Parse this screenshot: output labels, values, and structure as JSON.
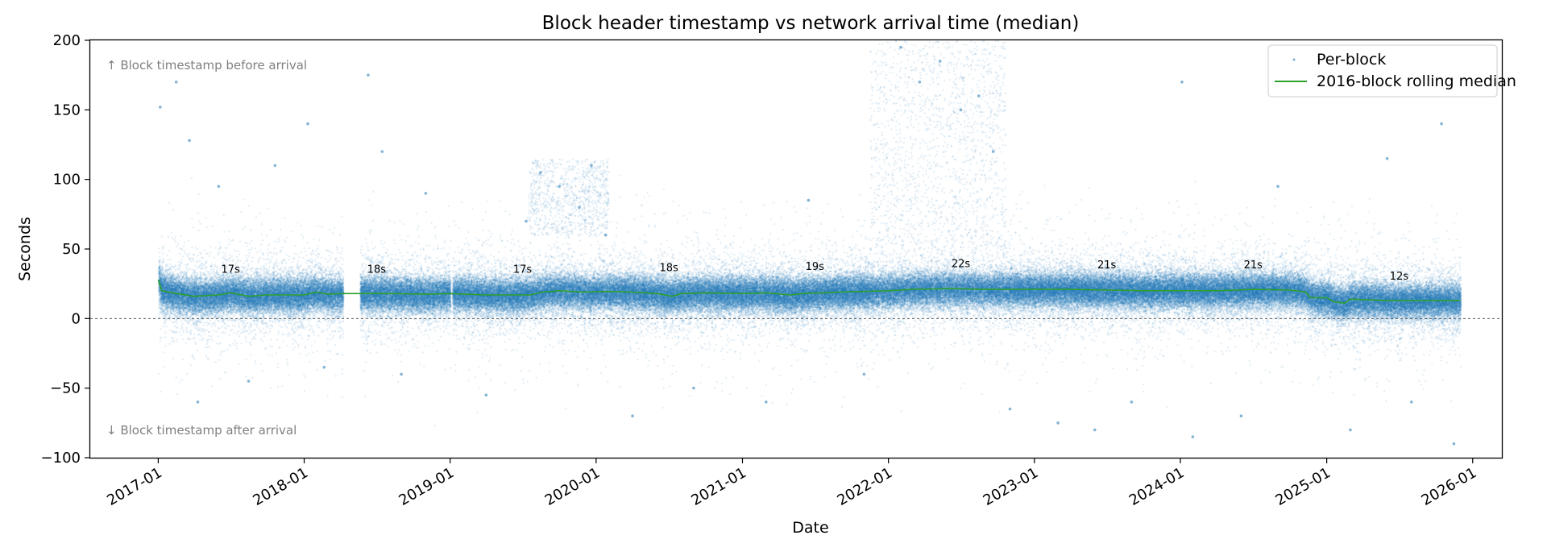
{
  "chart_data": {
    "type": "scatter",
    "title": "Block header timestamp vs network arrival time (median)",
    "xlabel": "Date",
    "ylabel": "Seconds",
    "ylim": [
      -100,
      200
    ],
    "xlim": [
      "2016-07-15",
      "2026-03-15"
    ],
    "yticks": [
      -100,
      -50,
      0,
      50,
      100,
      150,
      200
    ],
    "xticks": [
      "2017-01",
      "2018-01",
      "2019-01",
      "2020-01",
      "2021-01",
      "2022-01",
      "2023-01",
      "2024-01",
      "2025-01",
      "2026-01"
    ],
    "zero_reference_line": true,
    "grid": false,
    "legend_position": "top-right",
    "annotations": {
      "top": "↑ Block timestamp before arrival",
      "bottom": "↓ Block timestamp after arrival"
    },
    "series": [
      {
        "name": "Per-block",
        "kind": "scatter",
        "color": "#1f77b4",
        "date_range": [
          "2017-01-01",
          "2025-12-01"
        ],
        "data_gaps": [
          [
            "2018-04-08",
            "2018-05-20"
          ],
          [
            "2019-01-01",
            "2019-01-06"
          ]
        ],
        "dense_band": [
          0,
          35
        ],
        "points": [
          [
            "2017-01-06",
            152
          ],
          [
            "2017-02-15",
            170
          ],
          [
            "2017-03-20",
            128
          ],
          [
            "2017-04-10",
            -60
          ],
          [
            "2017-06-01",
            95
          ],
          [
            "2017-08-15",
            -45
          ],
          [
            "2017-10-20",
            110
          ],
          [
            "2018-01-10",
            140
          ],
          [
            "2018-02-20",
            -35
          ],
          [
            "2018-06-10",
            175
          ],
          [
            "2018-07-15",
            120
          ],
          [
            "2018-09-01",
            -40
          ],
          [
            "2018-11-01",
            90
          ],
          [
            "2019-04-01",
            -55
          ],
          [
            "2019-07-10",
            70
          ],
          [
            "2019-08-15",
            105
          ],
          [
            "2019-10-01",
            95
          ],
          [
            "2019-11-20",
            80
          ],
          [
            "2019-12-20",
            110
          ],
          [
            "2020-01-25",
            60
          ],
          [
            "2020-04-01",
            -70
          ],
          [
            "2020-09-01",
            -50
          ],
          [
            "2021-03-01",
            -60
          ],
          [
            "2021-06-15",
            85
          ],
          [
            "2021-11-01",
            -40
          ],
          [
            "2022-02-01",
            195
          ],
          [
            "2022-03-20",
            170
          ],
          [
            "2022-05-10",
            185
          ],
          [
            "2022-07-01",
            150
          ],
          [
            "2022-08-15",
            160
          ],
          [
            "2022-09-20",
            120
          ],
          [
            "2022-11-01",
            -65
          ],
          [
            "2023-03-01",
            -75
          ],
          [
            "2023-06-01",
            -80
          ],
          [
            "2023-09-01",
            -60
          ],
          [
            "2024-01-05",
            170
          ],
          [
            "2024-02-01",
            -85
          ],
          [
            "2024-06-01",
            -70
          ],
          [
            "2024-09-01",
            95
          ],
          [
            "2025-03-01",
            -80
          ],
          [
            "2025-06-01",
            115
          ],
          [
            "2025-08-01",
            -60
          ],
          [
            "2025-10-15",
            140
          ],
          [
            "2025-11-15",
            -90
          ]
        ]
      },
      {
        "name": "2016-block rolling median",
        "kind": "line",
        "color": "#2ca02c",
        "points": [
          [
            "2017-01-01",
            28
          ],
          [
            "2017-01-10",
            20
          ],
          [
            "2017-02-15",
            18
          ],
          [
            "2017-04-01",
            16
          ],
          [
            "2017-06-01",
            17
          ],
          [
            "2017-07-01",
            18.5
          ],
          [
            "2017-08-15",
            16
          ],
          [
            "2017-10-01",
            17
          ],
          [
            "2018-01-01",
            17
          ],
          [
            "2018-02-01",
            19
          ],
          [
            "2018-03-01",
            17.5
          ],
          [
            "2018-04-08",
            18
          ],
          [
            "2018-05-20",
            18
          ],
          [
            "2018-08-01",
            18
          ],
          [
            "2018-11-01",
            17.5
          ],
          [
            "2019-01-01",
            18
          ],
          [
            "2019-04-01",
            17
          ],
          [
            "2019-06-01",
            17
          ],
          [
            "2019-07-20",
            17
          ],
          [
            "2019-08-20",
            19
          ],
          [
            "2019-10-01",
            20
          ],
          [
            "2019-12-01",
            19
          ],
          [
            "2020-02-01",
            19.5
          ],
          [
            "2020-04-01",
            19
          ],
          [
            "2020-06-01",
            18
          ],
          [
            "2020-07-10",
            16
          ],
          [
            "2020-08-01",
            18
          ],
          [
            "2020-10-01",
            18.5
          ],
          [
            "2021-01-01",
            18
          ],
          [
            "2021-03-01",
            18.5
          ],
          [
            "2021-05-01",
            17
          ],
          [
            "2021-06-01",
            18
          ],
          [
            "2021-09-01",
            19
          ],
          [
            "2022-01-01",
            20
          ],
          [
            "2022-03-01",
            21
          ],
          [
            "2022-06-01",
            21.5
          ],
          [
            "2022-09-01",
            21
          ],
          [
            "2023-01-01",
            21
          ],
          [
            "2023-04-01",
            21
          ],
          [
            "2023-07-01",
            20.5
          ],
          [
            "2023-10-01",
            20
          ],
          [
            "2024-01-01",
            20
          ],
          [
            "2024-04-01",
            20
          ],
          [
            "2024-07-01",
            21
          ],
          [
            "2024-10-01",
            20.5
          ],
          [
            "2024-11-10",
            19
          ],
          [
            "2024-11-20",
            15
          ],
          [
            "2025-01-01",
            15
          ],
          [
            "2025-01-20",
            12
          ],
          [
            "2025-02-15",
            11
          ],
          [
            "2025-03-01",
            14
          ],
          [
            "2025-06-01",
            13
          ],
          [
            "2025-09-01",
            13
          ],
          [
            "2025-12-01",
            13
          ]
        ]
      }
    ],
    "median_labels": [
      {
        "text": "17s",
        "x": "2017-07-01",
        "y": 33
      },
      {
        "text": "18s",
        "x": "2018-07-01",
        "y": 33
      },
      {
        "text": "17s",
        "x": "2019-07-01",
        "y": 33
      },
      {
        "text": "18s",
        "x": "2020-07-01",
        "y": 34
      },
      {
        "text": "19s",
        "x": "2021-07-01",
        "y": 35
      },
      {
        "text": "22s",
        "x": "2022-07-01",
        "y": 37
      },
      {
        "text": "21s",
        "x": "2023-07-01",
        "y": 36
      },
      {
        "text": "21s",
        "x": "2024-07-01",
        "y": 36
      },
      {
        "text": "12s",
        "x": "2025-07-01",
        "y": 28
      }
    ]
  }
}
